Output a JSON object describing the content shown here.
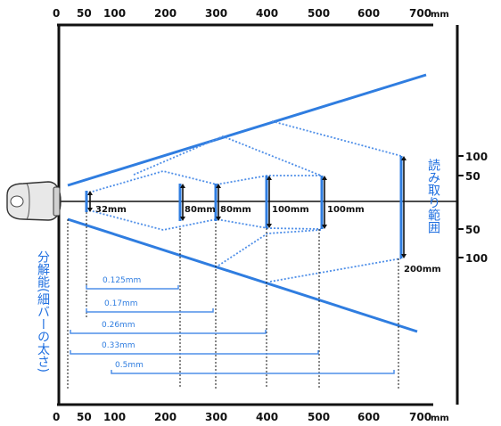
{
  "colors": {
    "beam": "#2f7de0",
    "resolution": "#4f8fe8",
    "ink": "#111111",
    "scanner": "#e8e8e8"
  },
  "top_axis": {
    "ticks": [
      "0",
      "50",
      "100",
      "200",
      "300",
      "400",
      "500",
      "600",
      "700"
    ],
    "unit": "mm"
  },
  "bottom_axis": {
    "ticks": [
      "0",
      "50",
      "100",
      "200",
      "300",
      "400",
      "500",
      "600",
      "700"
    ],
    "unit": "mm"
  },
  "right_axis": {
    "upper": [
      "100",
      "50"
    ],
    "lower": [
      "50",
      "100"
    ]
  },
  "scan_width": [
    {
      "distance_mm": 50,
      "width_label": "32mm"
    },
    {
      "distance_mm": 200,
      "width_label": "80mm"
    },
    {
      "distance_mm": 300,
      "width_label": "80mm"
    },
    {
      "distance_mm": 400,
      "width_label": "100mm"
    },
    {
      "distance_mm": 500,
      "width_label": "100mm"
    },
    {
      "distance_mm": 650,
      "width_label": "200mm"
    }
  ],
  "resolution_bars": [
    {
      "label": "0.125mm",
      "from_mm": 50,
      "to_mm": 230
    },
    {
      "label": "0.17mm",
      "from_mm": 50,
      "to_mm": 300
    },
    {
      "label": "0.26mm",
      "from_mm": 20,
      "to_mm": 400
    },
    {
      "label": "0.33mm",
      "from_mm": 20,
      "to_mm": 500
    },
    {
      "label": "0.5mm",
      "from_mm": 100,
      "to_mm": 650
    }
  ],
  "labels": {
    "reading_range": "読み取り範囲",
    "resolution": "分解能(細バーの太さ)"
  },
  "icons": {
    "scanner": "barcode-scanner-icon"
  }
}
